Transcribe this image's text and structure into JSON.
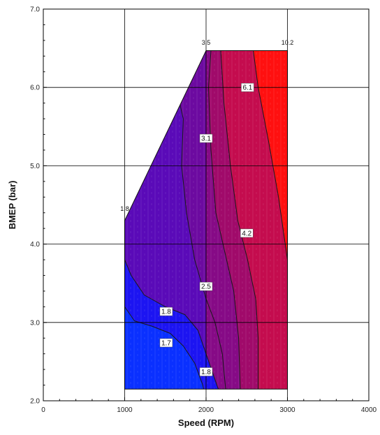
{
  "chart_data": {
    "type": "contour",
    "title": "",
    "xlabel": "Speed (RPM)",
    "ylabel": "BMEP (bar)",
    "xlim": [
      0,
      4000
    ],
    "ylim": [
      2.0,
      7.0
    ],
    "x_ticks": [
      0,
      1000,
      2000,
      3000,
      4000
    ],
    "x_tick_labels": [
      "0",
      "1000",
      "2000",
      "3000",
      "4000"
    ],
    "y_ticks": [
      2.0,
      3.0,
      4.0,
      5.0,
      6.0,
      7.0
    ],
    "y_tick_labels": [
      "2.0",
      "3.0",
      "4.0",
      "5.0",
      "6.0",
      "7.0"
    ],
    "grid": true,
    "domain_boundary": [
      [
        1000,
        2.15
      ],
      [
        3000,
        2.15
      ],
      [
        3000,
        6.47
      ],
      [
        2000,
        6.47
      ],
      [
        1000,
        4.3
      ]
    ],
    "color_low": "#1400ff",
    "color_mid": "#5a00b4",
    "color_high": "#ff0000",
    "regions": [
      {
        "color": "#1a10f0",
        "points": [
          [
            1000,
            2.15
          ],
          [
            2240,
            2.15
          ],
          [
            2200,
            2.6
          ],
          [
            2110,
            3.0
          ],
          [
            2000,
            3.3
          ],
          [
            1860,
            3.8
          ],
          [
            1760,
            4.4
          ],
          [
            1700,
            5.0
          ],
          [
            1720,
            5.6
          ],
          [
            1680,
            5.78
          ],
          [
            1000,
            4.3
          ]
        ]
      },
      {
        "color": "#5a0ab8",
        "points": [
          [
            1000,
            2.15
          ],
          [
            2240,
            2.15
          ],
          [
            2200,
            2.6
          ],
          [
            2110,
            3.0
          ],
          [
            2000,
            3.3
          ],
          [
            1860,
            3.8
          ],
          [
            1760,
            4.4
          ],
          [
            1700,
            5.0
          ],
          [
            1720,
            5.6
          ],
          [
            1680,
            5.78
          ],
          [
            1000,
            4.3
          ]
        ]
      },
      {
        "color": "#6c0aa0",
        "points": [
          [
            2000,
            3.3
          ],
          [
            1860,
            3.8
          ],
          [
            1760,
            4.4
          ],
          [
            1700,
            5.0
          ],
          [
            1720,
            5.6
          ],
          [
            1680,
            5.78
          ],
          [
            2000,
            6.47
          ],
          [
            2000,
            2.15
          ],
          [
            2240,
            2.15
          ],
          [
            2200,
            2.6
          ],
          [
            2110,
            3.0
          ]
        ]
      },
      {
        "color": "#860a86",
        "points": [
          [
            2240,
            2.15
          ],
          [
            2420,
            2.15
          ],
          [
            2400,
            2.8
          ],
          [
            2340,
            3.4
          ],
          [
            2230,
            3.9
          ],
          [
            2120,
            4.4
          ],
          [
            2060,
            5.2
          ],
          [
            2030,
            6.0
          ],
          [
            2060,
            6.47
          ],
          [
            2000,
            6.47
          ],
          [
            2000,
            2.15
          ]
        ]
      },
      {
        "color": "#a00a6a",
        "points": [
          [
            2420,
            2.15
          ],
          [
            2640,
            2.15
          ],
          [
            2640,
            2.8
          ],
          [
            2610,
            3.3
          ],
          [
            2510,
            3.8
          ],
          [
            2390,
            4.3
          ],
          [
            2300,
            5.0
          ],
          [
            2220,
            5.8
          ],
          [
            2180,
            6.47
          ],
          [
            2060,
            6.47
          ],
          [
            2030,
            6.0
          ],
          [
            2060,
            5.2
          ],
          [
            2120,
            4.4
          ],
          [
            2230,
            3.9
          ],
          [
            2340,
            3.4
          ],
          [
            2400,
            2.8
          ]
        ]
      },
      {
        "color": "#c40c4e",
        "points": [
          [
            2640,
            2.15
          ],
          [
            3000,
            2.15
          ],
          [
            3000,
            3.8
          ],
          [
            2890,
            4.6
          ],
          [
            2770,
            5.3
          ],
          [
            2640,
            6.0
          ],
          [
            2580,
            6.47
          ],
          [
            2180,
            6.47
          ],
          [
            2220,
            5.8
          ],
          [
            2300,
            5.0
          ],
          [
            2390,
            4.3
          ],
          [
            2510,
            3.8
          ],
          [
            2610,
            3.3
          ],
          [
            2640,
            2.8
          ]
        ]
      },
      {
        "color": "#ff1010",
        "points": [
          [
            3000,
            3.8
          ],
          [
            3000,
            6.47
          ],
          [
            2580,
            6.47
          ],
          [
            2640,
            6.0
          ],
          [
            2770,
            5.3
          ],
          [
            2890,
            4.6
          ]
        ]
      }
    ],
    "low_zones": [
      {
        "color": "#1c14f2",
        "points": [
          [
            1000,
            3.8
          ],
          [
            1080,
            3.6
          ],
          [
            1240,
            3.35
          ],
          [
            1500,
            3.2
          ],
          [
            1740,
            3.1
          ],
          [
            1900,
            2.9
          ],
          [
            2000,
            2.6
          ],
          [
            2100,
            2.3
          ],
          [
            2150,
            2.15
          ],
          [
            1000,
            2.15
          ]
        ]
      },
      {
        "color": "#0a30ff",
        "points": [
          [
            1000,
            3.2
          ],
          [
            1120,
            3.02
          ],
          [
            1340,
            2.95
          ],
          [
            1560,
            2.86
          ],
          [
            1720,
            2.7
          ],
          [
            1860,
            2.48
          ],
          [
            1960,
            2.2
          ],
          [
            1970,
            2.15
          ],
          [
            1000,
            2.15
          ]
        ]
      }
    ],
    "contour_lines": [
      [
        [
          1000,
          3.8
        ],
        [
          1080,
          3.6
        ],
        [
          1240,
          3.35
        ],
        [
          1500,
          3.2
        ],
        [
          1740,
          3.1
        ],
        [
          1900,
          2.9
        ],
        [
          2000,
          2.6
        ],
        [
          2100,
          2.3
        ],
        [
          2150,
          2.15
        ]
      ],
      [
        [
          1000,
          3.2
        ],
        [
          1120,
          3.02
        ],
        [
          1340,
          2.95
        ],
        [
          1560,
          2.86
        ],
        [
          1720,
          2.7
        ],
        [
          1860,
          2.48
        ],
        [
          1960,
          2.2
        ],
        [
          1970,
          2.15
        ]
      ],
      [
        [
          2240,
          2.15
        ],
        [
          2200,
          2.6
        ],
        [
          2110,
          3.0
        ],
        [
          2000,
          3.3
        ],
        [
          1860,
          3.8
        ],
        [
          1760,
          4.4
        ],
        [
          1700,
          5.0
        ],
        [
          1720,
          5.6
        ],
        [
          1680,
          5.78
        ]
      ],
      [
        [
          2420,
          2.15
        ],
        [
          2400,
          2.8
        ],
        [
          2340,
          3.4
        ],
        [
          2230,
          3.9
        ],
        [
          2120,
          4.4
        ],
        [
          2060,
          5.2
        ],
        [
          2030,
          6.0
        ],
        [
          2060,
          6.47
        ]
      ],
      [
        [
          2640,
          2.15
        ],
        [
          2640,
          2.8
        ],
        [
          2610,
          3.3
        ],
        [
          2510,
          3.8
        ],
        [
          2390,
          4.3
        ],
        [
          2300,
          5.0
        ],
        [
          2220,
          5.8
        ],
        [
          2180,
          6.47
        ]
      ],
      [
        [
          3000,
          3.8
        ],
        [
          2890,
          4.6
        ],
        [
          2770,
          5.3
        ],
        [
          2640,
          6.0
        ],
        [
          2580,
          6.47
        ]
      ]
    ],
    "contour_labels": [
      {
        "text": "1.8",
        "x": 1510,
        "y": 3.14
      },
      {
        "text": "1.7",
        "x": 1510,
        "y": 2.74
      },
      {
        "text": "1.8",
        "x": 2000,
        "y": 2.37
      },
      {
        "text": "2.5",
        "x": 2000,
        "y": 3.46
      },
      {
        "text": "3.1",
        "x": 2000,
        "y": 5.35
      },
      {
        "text": "4.2",
        "x": 2500,
        "y": 4.14
      },
      {
        "text": "6.1",
        "x": 2510,
        "y": 6.0
      }
    ],
    "corner_labels": [
      {
        "text": "1.8",
        "x": 1000,
        "y": 4.45
      },
      {
        "text": "3.5",
        "x": 2000,
        "y": 6.57
      },
      {
        "text": "10.2",
        "x": 3000,
        "y": 6.57
      }
    ]
  }
}
